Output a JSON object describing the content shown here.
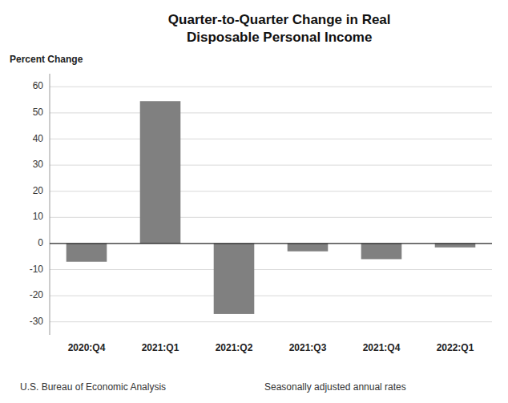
{
  "chart_data": {
    "type": "bar",
    "title": "Quarter-to-Quarter Change in Real\nDisposable Personal Income",
    "ylabel": "Percent Change",
    "categories": [
      "2020:Q4",
      "2021:Q1",
      "2021:Q2",
      "2021:Q3",
      "2021:Q4",
      "2022:Q1"
    ],
    "values": [
      -7.0,
      54.5,
      -27.0,
      -3.0,
      -6.0,
      -1.5
    ],
    "color": "#808080",
    "ylim": [
      -35,
      65
    ],
    "yticks": [
      -30,
      -20,
      -10,
      0,
      10,
      20,
      30,
      40,
      50,
      60
    ],
    "grid": true,
    "annotations": [
      "U.S. Bureau of Economic Analysis",
      "Seasonally adjusted annual rates"
    ]
  }
}
